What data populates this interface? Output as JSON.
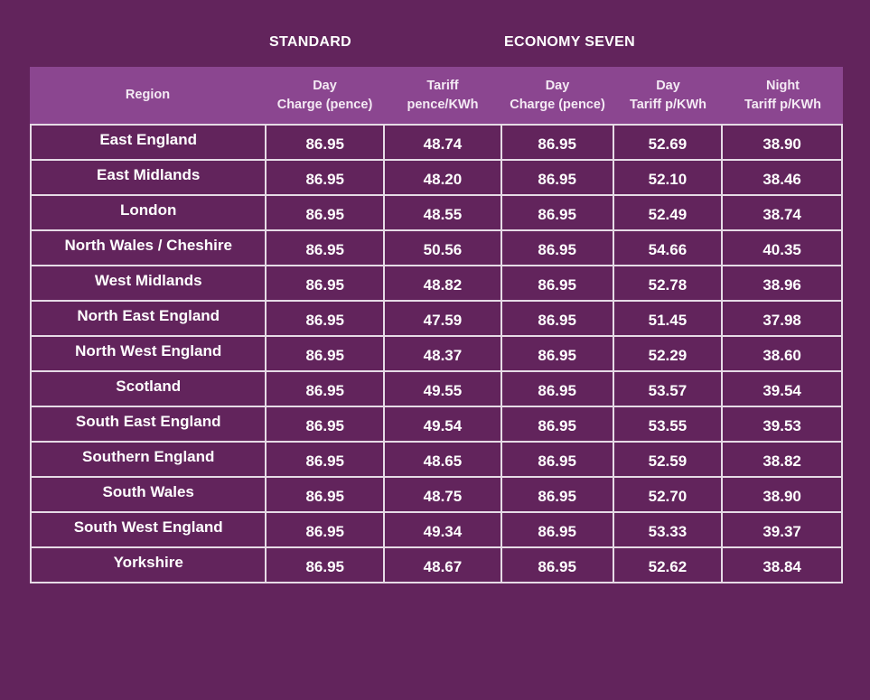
{
  "groups": {
    "standard": "STANDARD",
    "economy": "ECONOMY SEVEN"
  },
  "columns": [
    {
      "l1": "Region",
      "l2": ""
    },
    {
      "l1": "Day",
      "l2": "Charge (pence)"
    },
    {
      "l1": "Tariff",
      "l2": "pence/KWh"
    },
    {
      "l1": "Day",
      "l2": "Charge (pence)"
    },
    {
      "l1": "Day",
      "l2": "Tariff p/KWh"
    },
    {
      "l1": "Night",
      "l2": "Tariff p/KWh"
    }
  ],
  "rows": [
    [
      "East England",
      "86.95",
      "48.74",
      "86.95",
      "52.69",
      "38.90"
    ],
    [
      "East Midlands",
      "86.95",
      "48.20",
      "86.95",
      "52.10",
      "38.46"
    ],
    [
      "London",
      "86.95",
      "48.55",
      "86.95",
      "52.49",
      "38.74"
    ],
    [
      "North Wales / Cheshire",
      "86.95",
      "50.56",
      "86.95",
      "54.66",
      "40.35"
    ],
    [
      "West Midlands",
      "86.95",
      "48.82",
      "86.95",
      "52.78",
      "38.96"
    ],
    [
      "North East England",
      "86.95",
      "47.59",
      "86.95",
      "51.45",
      "37.98"
    ],
    [
      "North West England",
      "86.95",
      "48.37",
      "86.95",
      "52.29",
      "38.60"
    ],
    [
      "Scotland",
      "86.95",
      "49.55",
      "86.95",
      "53.57",
      "39.54"
    ],
    [
      "South East England",
      "86.95",
      "49.54",
      "86.95",
      "53.55",
      "39.53"
    ],
    [
      "Southern England",
      "86.95",
      "48.65",
      "86.95",
      "52.59",
      "38.82"
    ],
    [
      "South Wales",
      "86.95",
      "48.75",
      "86.95",
      "52.70",
      "38.90"
    ],
    [
      "South West England",
      "86.95",
      "49.34",
      "86.95",
      "53.33",
      "39.37"
    ],
    [
      "Yorkshire",
      "86.95",
      "48.67",
      "86.95",
      "52.62",
      "38.84"
    ]
  ]
}
